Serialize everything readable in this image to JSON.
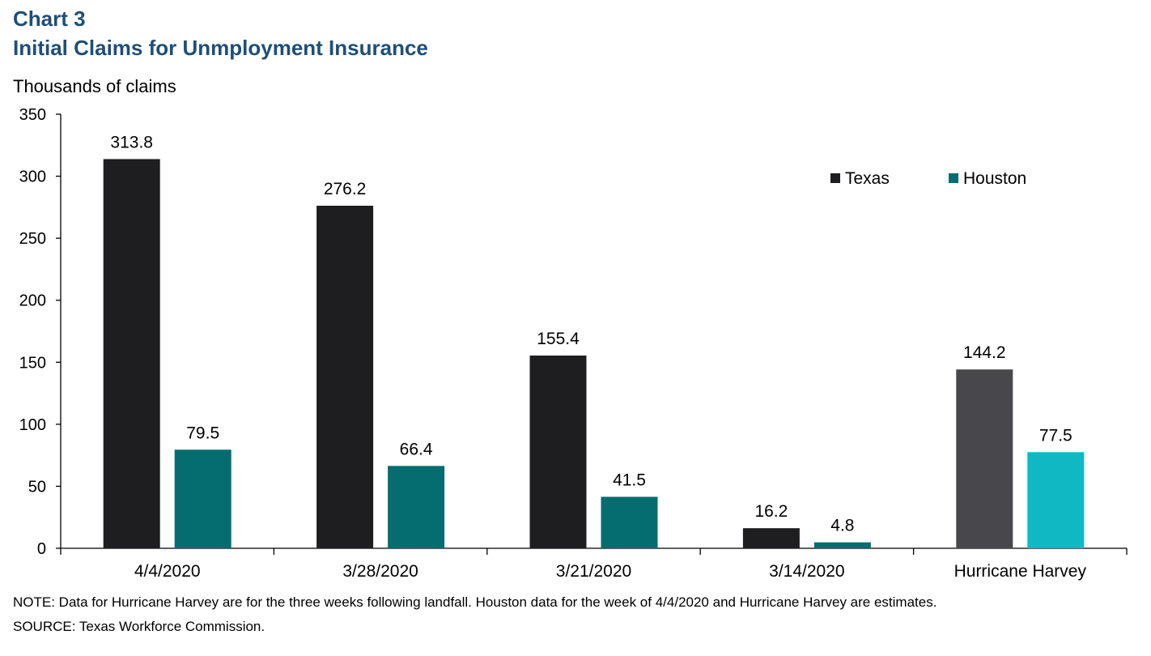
{
  "header": {
    "chart_number": "Chart 3",
    "title": "Initial Claims for Unmployment Insurance",
    "y_unit": "Thousands of claims"
  },
  "footer": {
    "note": "NOTE: Data for Hurricane Harvey are for the three weeks following landfall. Houston data for the week of 4/4/2020 and Hurricane Harvey are estimates.",
    "source": "SOURCE: Texas Workforce Commission."
  },
  "chart_data": {
    "type": "bar",
    "title": "Initial Claims for Unmployment Insurance",
    "ylabel": "Thousands of claims",
    "xlabel": "",
    "ylim": [
      0,
      350
    ],
    "yticks": [
      0,
      50,
      100,
      150,
      200,
      250,
      300,
      350
    ],
    "categories": [
      "4/4/2020",
      "3/28/2020",
      "3/21/2020",
      "3/14/2020",
      "Hurricane Harvey"
    ],
    "series": [
      {
        "name": "Texas",
        "color": "#1e1e20",
        "highlight_color": "#48484c",
        "values": [
          313.8,
          276.2,
          155.4,
          16.2,
          144.2
        ],
        "labels": [
          "313.8",
          "276.2",
          "155.4",
          "16.2",
          "144.2"
        ]
      },
      {
        "name": "Houston",
        "color": "#056d70",
        "highlight_color": "#0eb9c3",
        "values": [
          79.5,
          66.4,
          41.5,
          4.8,
          77.5
        ],
        "labels": [
          "79.5",
          "66.4",
          "41.5",
          "4.8",
          "77.5"
        ]
      }
    ],
    "highlight_category_index": 4,
    "legend": {
      "position": "top-right"
    },
    "grid": false
  }
}
